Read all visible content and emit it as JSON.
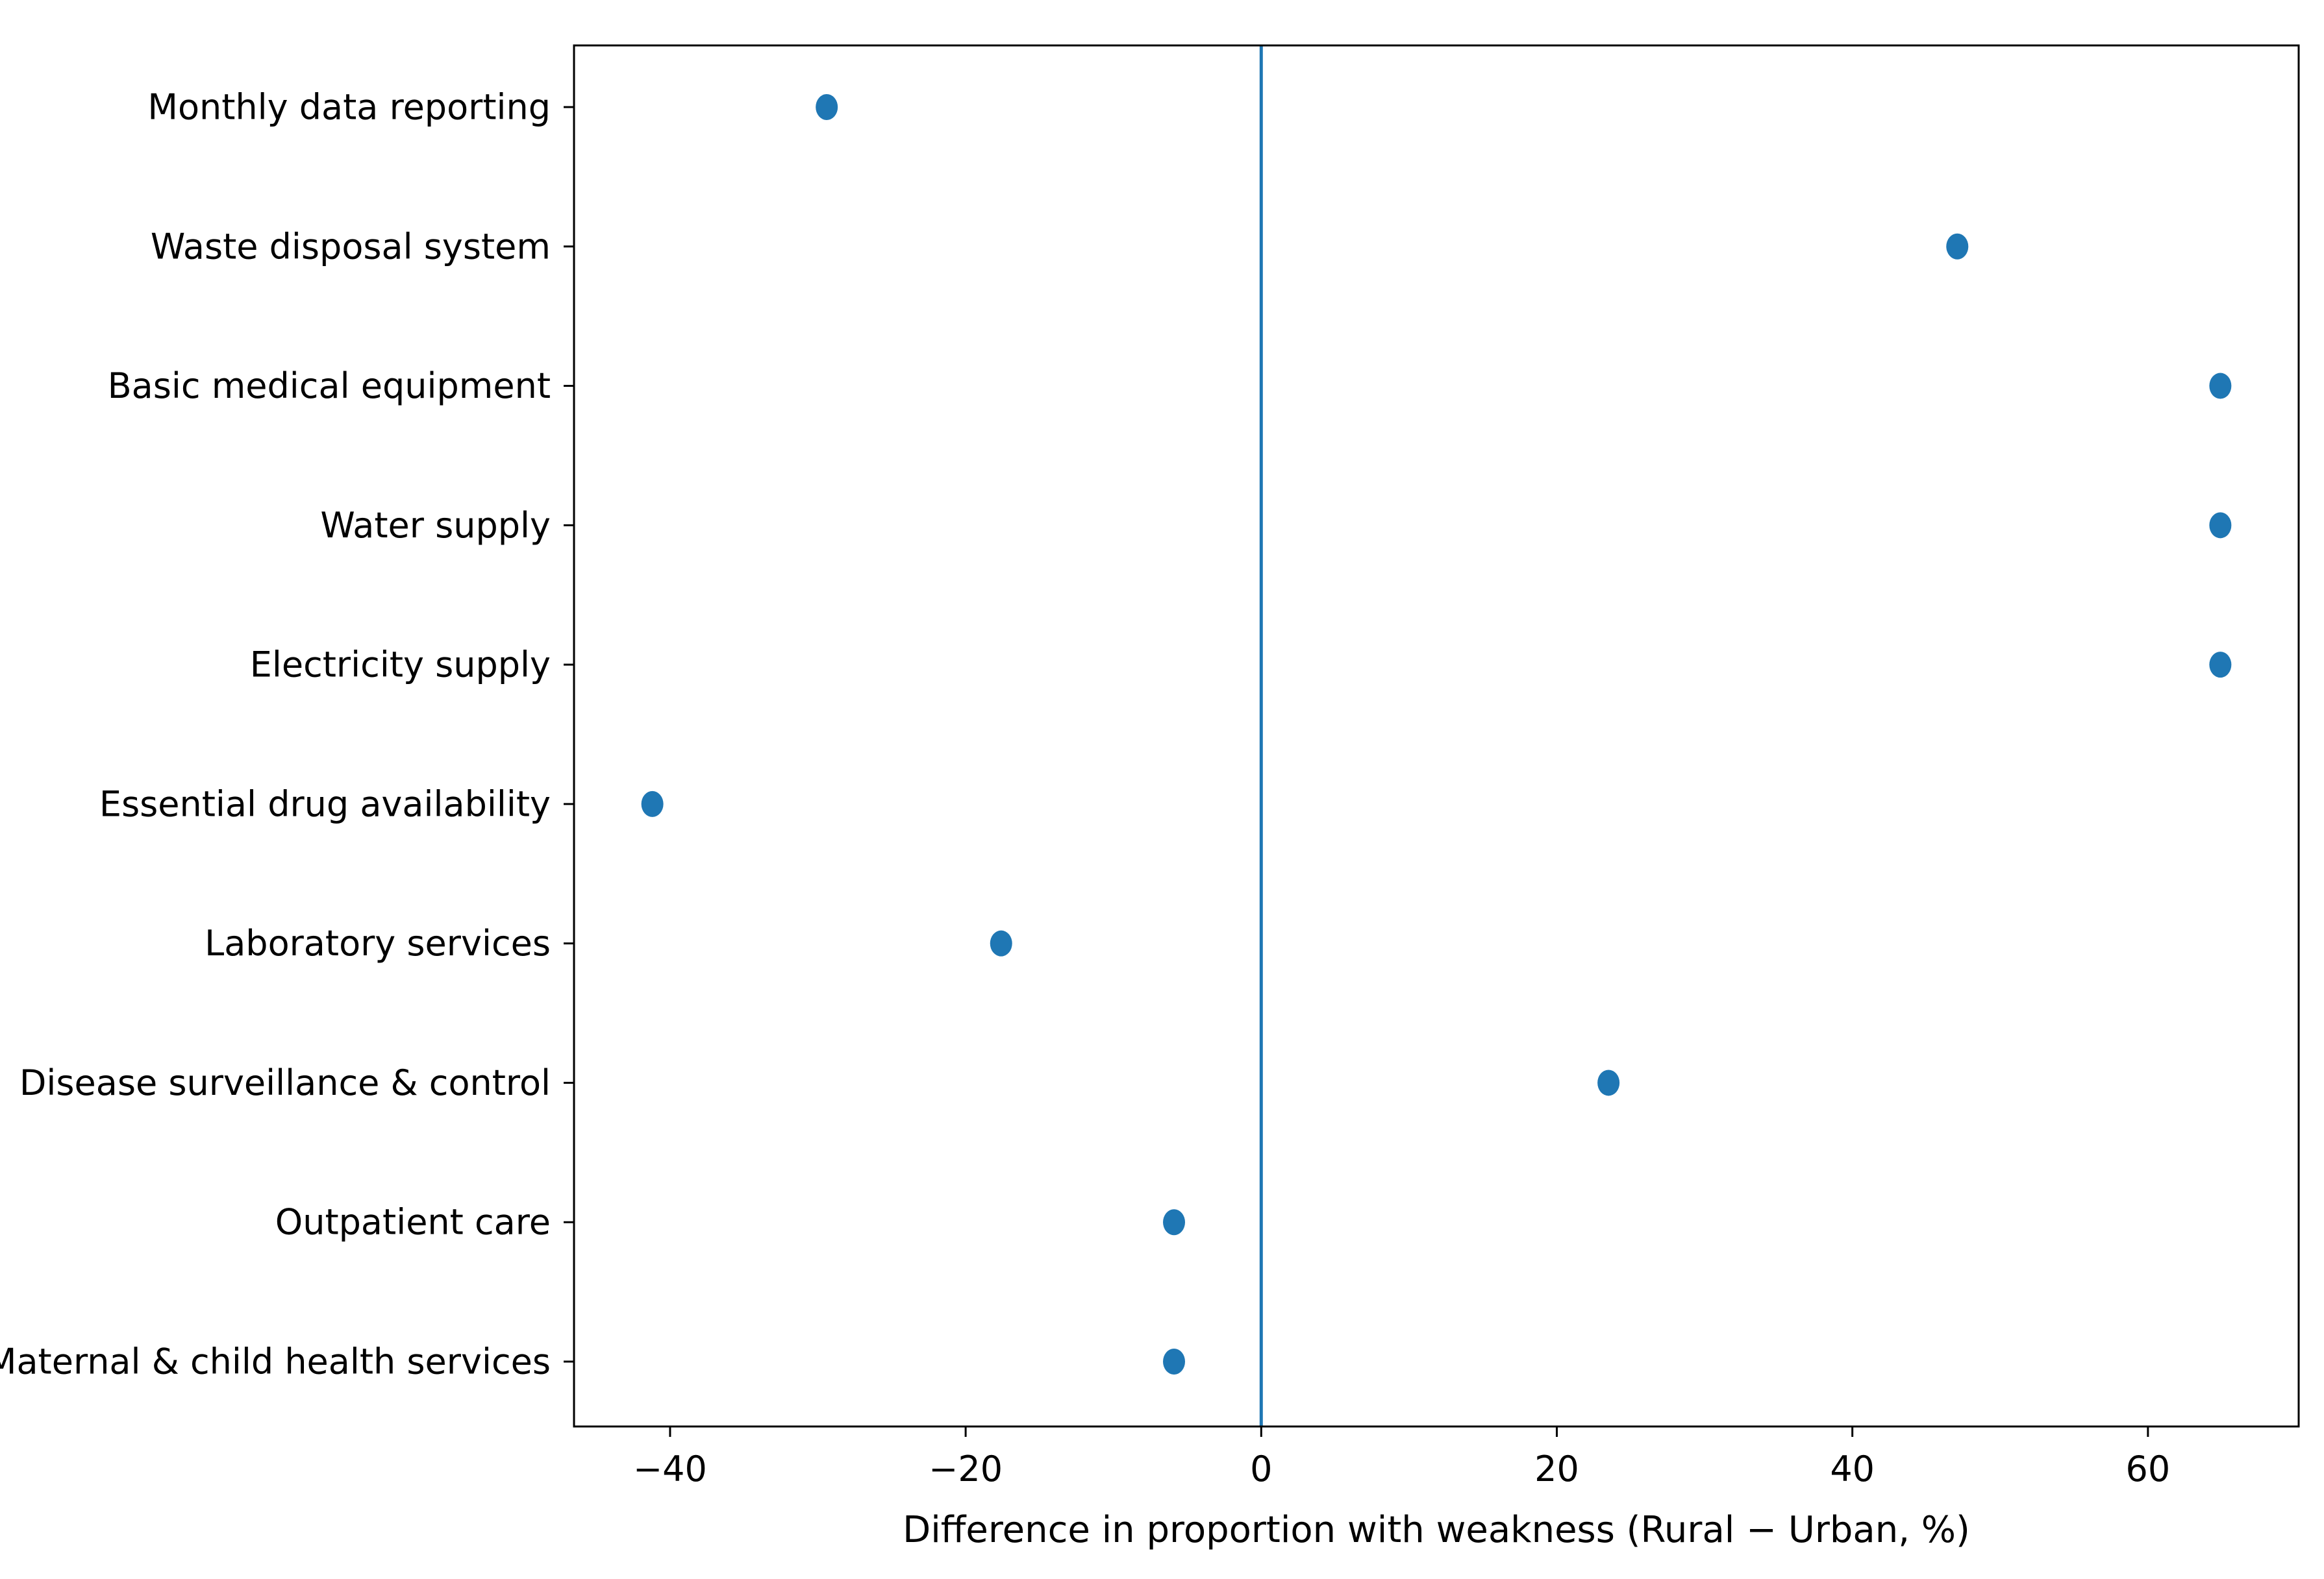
{
  "chart_data": {
    "type": "scatter",
    "title": "",
    "xlabel": "Difference in proportion with weakness (Rural − Urban, %)",
    "ylabel": "",
    "xlim": [
      -46.5,
      70.2
    ],
    "xticks": [
      -40,
      -20,
      0,
      20,
      40,
      60
    ],
    "xtick_labels": [
      "−40",
      "−20",
      "0",
      "20",
      "40",
      "60"
    ],
    "categories": [
      "Monthly data reporting",
      "Waste disposal system",
      "Basic medical equipment",
      "Water supply",
      "Electricity supply",
      "Essential drug availability",
      "Laboratory services",
      "Disease surveillance & control",
      "Outpatient care",
      "Maternal & child health services"
    ],
    "values": [
      -29.4,
      47.1,
      64.9,
      64.9,
      64.9,
      -41.2,
      -17.6,
      23.5,
      -5.9,
      -5.9
    ],
    "reference_line_x": 0,
    "grid": false,
    "legend": "none",
    "colors": {
      "marker": "#1f77b4",
      "reference_line": "#1f77b4",
      "axes": "#000000"
    }
  }
}
